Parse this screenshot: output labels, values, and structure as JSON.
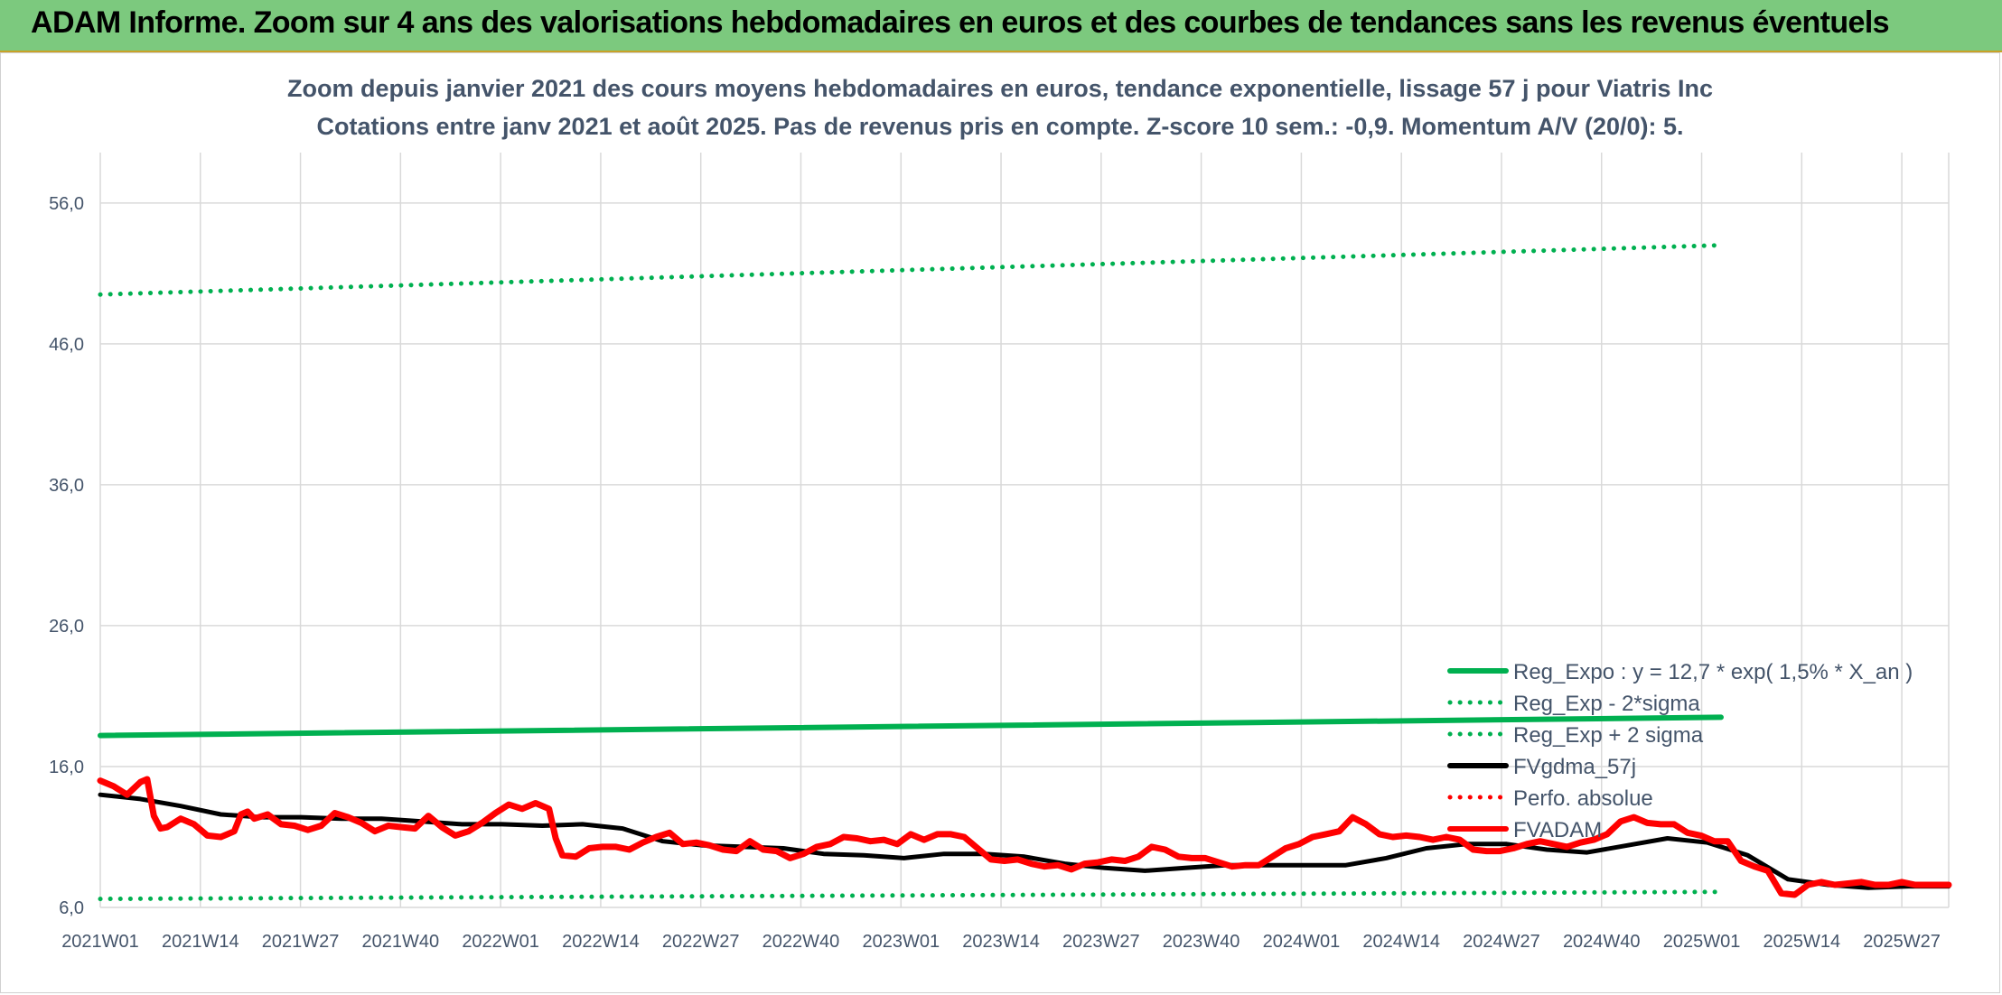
{
  "header": {
    "title": "ADAM Informe. Zoom sur 4 ans des valorisations hebdomadaires en euros et des courbes de tendances sans les revenus éventuels"
  },
  "colors": {
    "header_bg": "#7cc97e",
    "reg_green": "#00b050",
    "fvgdma_black": "#000000",
    "fvadam_red": "#ff0000",
    "text": "#44546a",
    "grid": "#d9d9d9"
  },
  "chart_data": {
    "type": "line",
    "title": [
      "Zoom depuis janvier 2021 des cours moyens hebdomadaires en euros, tendance exponentielle, lissage 57 j pour Viatris Inc",
      "Cotations entre janv 2021 et août 2025. Pas de revenus pris en compte. Z-score 10 sem.: -0,9. Momentum A/V (20/0): 5."
    ],
    "xlabel": "",
    "ylabel": "",
    "x_tick_labels": [
      "2021W01",
      "2021W14",
      "2021W27",
      "2021W40",
      "2022W01",
      "2022W14",
      "2022W27",
      "2022W40",
      "2023W01",
      "2023W14",
      "2023W27",
      "2023W40",
      "2024W01",
      "2024W14",
      "2024W27",
      "2024W40",
      "2025W01",
      "2025W14",
      "2025W27"
    ],
    "y_tick_labels": [
      "6,0",
      "16,0",
      "26,0",
      "36,0",
      "46,0",
      "56,0"
    ],
    "y_ticks": [
      6,
      16,
      26,
      36,
      46,
      56
    ],
    "ylim": [
      6,
      61.5
    ],
    "x_weeks": 242,
    "grid": true,
    "legend_position": "bottom-right",
    "series": [
      {
        "name": "Reg_Expo : y = 12,7 * exp( 1,5% *  X_an )",
        "style": "solid-thick",
        "color": "#00b050",
        "points": [
          [
            0,
            18.2
          ],
          [
            242,
            19.5
          ]
        ]
      },
      {
        "name": "Reg_Exp - 2*sigma",
        "style": "dotted",
        "color": "#00b050",
        "points": [
          [
            0,
            6.6
          ],
          [
            242,
            7.1
          ]
        ]
      },
      {
        "name": "Reg_Exp + 2 sigma",
        "style": "dotted",
        "color": "#00b050",
        "points": [
          [
            0,
            49.5
          ],
          [
            242,
            53.0
          ]
        ]
      },
      {
        "name": "FVgdma_57j",
        "style": "solid",
        "color": "#000000",
        "points": [
          [
            0,
            14.0
          ],
          [
            6,
            13.7
          ],
          [
            12,
            13.2
          ],
          [
            18,
            12.6
          ],
          [
            24,
            12.4
          ],
          [
            30,
            12.4
          ],
          [
            36,
            12.3
          ],
          [
            42,
            12.3
          ],
          [
            48,
            12.1
          ],
          [
            54,
            11.9
          ],
          [
            60,
            11.9
          ],
          [
            66,
            11.8
          ],
          [
            72,
            11.9
          ],
          [
            78,
            11.6
          ],
          [
            84,
            10.7
          ],
          [
            90,
            10.4
          ],
          [
            96,
            10.3
          ],
          [
            102,
            10.2
          ],
          [
            108,
            9.8
          ],
          [
            114,
            9.7
          ],
          [
            120,
            9.5
          ],
          [
            126,
            9.8
          ],
          [
            132,
            9.8
          ],
          [
            138,
            9.6
          ],
          [
            144,
            9.1
          ],
          [
            150,
            8.8
          ],
          [
            156,
            8.6
          ],
          [
            162,
            8.8
          ],
          [
            168,
            9.0
          ],
          [
            174,
            9.0
          ],
          [
            180,
            9.0
          ],
          [
            186,
            9.0
          ],
          [
            192,
            9.5
          ],
          [
            198,
            10.2
          ],
          [
            204,
            10.5
          ],
          [
            210,
            10.5
          ],
          [
            216,
            10.1
          ],
          [
            222,
            9.9
          ],
          [
            228,
            10.4
          ],
          [
            234,
            10.9
          ],
          [
            240,
            10.6
          ],
          [
            246,
            9.7
          ],
          [
            252,
            8.0
          ],
          [
            258,
            7.6
          ],
          [
            264,
            7.4
          ],
          [
            270,
            7.5
          ],
          [
            276,
            7.5
          ]
        ]
      },
      {
        "name": "Perfo. absolue",
        "style": "dotted",
        "color": "#ff0000",
        "points": []
      },
      {
        "name": "FVADAM",
        "style": "solid-thick",
        "color": "#ff0000",
        "points": [
          [
            0,
            15.0
          ],
          [
            2,
            14.6
          ],
          [
            4,
            14.0
          ],
          [
            6,
            14.9
          ],
          [
            7,
            15.1
          ],
          [
            8,
            12.5
          ],
          [
            9,
            11.6
          ],
          [
            10,
            11.7
          ],
          [
            12,
            12.3
          ],
          [
            14,
            11.9
          ],
          [
            16,
            11.1
          ],
          [
            18,
            11.0
          ],
          [
            20,
            11.4
          ],
          [
            21,
            12.6
          ],
          [
            22,
            12.8
          ],
          [
            23,
            12.3
          ],
          [
            25,
            12.6
          ],
          [
            27,
            11.9
          ],
          [
            29,
            11.8
          ],
          [
            31,
            11.5
          ],
          [
            33,
            11.8
          ],
          [
            35,
            12.7
          ],
          [
            37,
            12.4
          ],
          [
            39,
            12.0
          ],
          [
            41,
            11.4
          ],
          [
            43,
            11.8
          ],
          [
            45,
            11.7
          ],
          [
            47,
            11.6
          ],
          [
            49,
            12.5
          ],
          [
            51,
            11.7
          ],
          [
            53,
            11.1
          ],
          [
            55,
            11.4
          ],
          [
            57,
            12.0
          ],
          [
            59,
            12.7
          ],
          [
            61,
            13.3
          ],
          [
            63,
            13.0
          ],
          [
            65,
            13.4
          ],
          [
            67,
            13.0
          ],
          [
            68,
            10.9
          ],
          [
            69,
            9.7
          ],
          [
            71,
            9.6
          ],
          [
            73,
            10.2
          ],
          [
            75,
            10.3
          ],
          [
            77,
            10.3
          ],
          [
            79,
            10.1
          ],
          [
            81,
            10.6
          ],
          [
            83,
            11.0
          ],
          [
            85,
            11.3
          ],
          [
            87,
            10.5
          ],
          [
            89,
            10.6
          ],
          [
            91,
            10.4
          ],
          [
            93,
            10.1
          ],
          [
            95,
            10.0
          ],
          [
            97,
            10.7
          ],
          [
            99,
            10.1
          ],
          [
            101,
            10.0
          ],
          [
            103,
            9.5
          ],
          [
            105,
            9.8
          ],
          [
            107,
            10.3
          ],
          [
            109,
            10.5
          ],
          [
            111,
            11.0
          ],
          [
            113,
            10.9
          ],
          [
            115,
            10.7
          ],
          [
            117,
            10.8
          ],
          [
            119,
            10.5
          ],
          [
            121,
            11.2
          ],
          [
            123,
            10.8
          ],
          [
            125,
            11.2
          ],
          [
            127,
            11.2
          ],
          [
            129,
            11.0
          ],
          [
            131,
            10.2
          ],
          [
            133,
            9.4
          ],
          [
            135,
            9.3
          ],
          [
            137,
            9.4
          ],
          [
            139,
            9.1
          ],
          [
            141,
            8.9
          ],
          [
            143,
            9.0
          ],
          [
            145,
            8.7
          ],
          [
            147,
            9.1
          ],
          [
            149,
            9.2
          ],
          [
            151,
            9.4
          ],
          [
            153,
            9.3
          ],
          [
            155,
            9.6
          ],
          [
            157,
            10.3
          ],
          [
            159,
            10.1
          ],
          [
            161,
            9.6
          ],
          [
            163,
            9.5
          ],
          [
            165,
            9.5
          ],
          [
            167,
            9.2
          ],
          [
            169,
            8.9
          ],
          [
            171,
            9.0
          ],
          [
            173,
            9.0
          ],
          [
            175,
            9.6
          ],
          [
            177,
            10.2
          ],
          [
            179,
            10.5
          ],
          [
            181,
            11.0
          ],
          [
            183,
            11.2
          ],
          [
            185,
            11.4
          ],
          [
            187,
            12.4
          ],
          [
            189,
            11.9
          ],
          [
            191,
            11.2
          ],
          [
            193,
            11.0
          ],
          [
            195,
            11.1
          ],
          [
            197,
            11.0
          ],
          [
            199,
            10.8
          ],
          [
            201,
            11.0
          ],
          [
            203,
            10.8
          ],
          [
            205,
            10.1
          ],
          [
            207,
            10.0
          ],
          [
            209,
            10.0
          ],
          [
            211,
            10.2
          ],
          [
            213,
            10.5
          ],
          [
            215,
            10.7
          ],
          [
            217,
            10.5
          ],
          [
            219,
            10.3
          ],
          [
            221,
            10.6
          ],
          [
            223,
            10.8
          ],
          [
            225,
            11.2
          ],
          [
            227,
            12.1
          ],
          [
            229,
            12.4
          ],
          [
            231,
            12.0
          ],
          [
            233,
            11.9
          ],
          [
            235,
            11.9
          ],
          [
            237,
            11.3
          ],
          [
            239,
            11.1
          ],
          [
            241,
            10.7
          ],
          [
            243,
            10.7
          ],
          [
            245,
            9.3
          ],
          [
            247,
            8.9
          ],
          [
            249,
            8.6
          ],
          [
            251,
            7.0
          ],
          [
            253,
            6.9
          ],
          [
            255,
            7.6
          ],
          [
            257,
            7.8
          ],
          [
            259,
            7.6
          ],
          [
            261,
            7.7
          ],
          [
            263,
            7.8
          ],
          [
            265,
            7.6
          ],
          [
            267,
            7.6
          ],
          [
            269,
            7.8
          ],
          [
            271,
            7.6
          ],
          [
            273,
            7.6
          ],
          [
            276,
            7.6
          ]
        ]
      }
    ]
  }
}
